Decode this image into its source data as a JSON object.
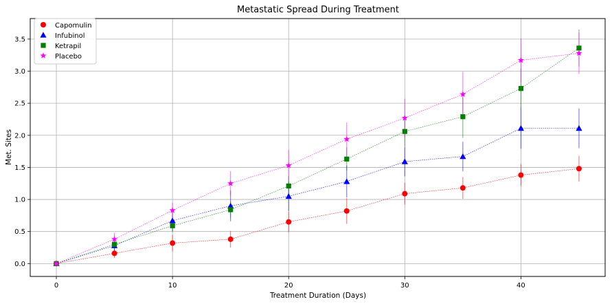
{
  "chart_data": {
    "type": "line",
    "title": "Metastatic Spread During Treatment",
    "xlabel": "Treatment Duration (Days)",
    "ylabel": "Met. Sites",
    "xlim": [
      -2.25,
      47.25
    ],
    "ylim": [
      -0.2,
      3.82
    ],
    "xticks": [
      0,
      10,
      20,
      30,
      40
    ],
    "xtick_labels": [
      "0",
      "10",
      "20",
      "30",
      "40"
    ],
    "yticks": [
      0.0,
      0.5,
      1.0,
      1.5,
      2.0,
      2.5,
      3.0,
      3.5
    ],
    "ytick_labels": [
      "0.0",
      "0.5",
      "1.0",
      "1.5",
      "2.0",
      "2.5",
      "3.0",
      "3.5"
    ],
    "grid": true,
    "legend_position": "top-left",
    "x": [
      0,
      5,
      10,
      15,
      20,
      25,
      30,
      35,
      40,
      45
    ],
    "series": [
      {
        "name": "Capomulin",
        "color": "#ff0000",
        "marker": "circle",
        "values": [
          0.0,
          0.16,
          0.32,
          0.38,
          0.65,
          0.82,
          1.09,
          1.18,
          1.38,
          1.48
        ],
        "errors": [
          0.0,
          0.07,
          0.13,
          0.13,
          0.16,
          0.2,
          0.17,
          0.17,
          0.17,
          0.2
        ]
      },
      {
        "name": "Infubinol",
        "color": "#0000ff",
        "marker": "triangle",
        "values": [
          0.0,
          0.28,
          0.67,
          0.9,
          1.05,
          1.28,
          1.59,
          1.67,
          2.11,
          2.11
        ],
        "errors": [
          0.0,
          0.09,
          0.16,
          0.24,
          0.23,
          0.25,
          0.23,
          0.23,
          0.32,
          0.31
        ]
      },
      {
        "name": "Ketrapil",
        "color": "#008000",
        "marker": "square",
        "values": [
          0.0,
          0.3,
          0.59,
          0.84,
          1.21,
          1.63,
          2.06,
          2.29,
          2.73,
          3.36
        ],
        "errors": [
          0.0,
          0.09,
          0.1,
          0.13,
          0.15,
          0.18,
          0.23,
          0.33,
          0.31,
          0.29
        ]
      },
      {
        "name": "Placebo",
        "color": "#ff00ff",
        "marker": "star",
        "values": [
          0.0,
          0.38,
          0.83,
          1.25,
          1.53,
          1.94,
          2.27,
          2.64,
          3.17,
          3.28
        ],
        "errors": [
          0.0,
          0.1,
          0.12,
          0.19,
          0.24,
          0.26,
          0.3,
          0.35,
          0.34,
          0.32
        ]
      }
    ]
  }
}
